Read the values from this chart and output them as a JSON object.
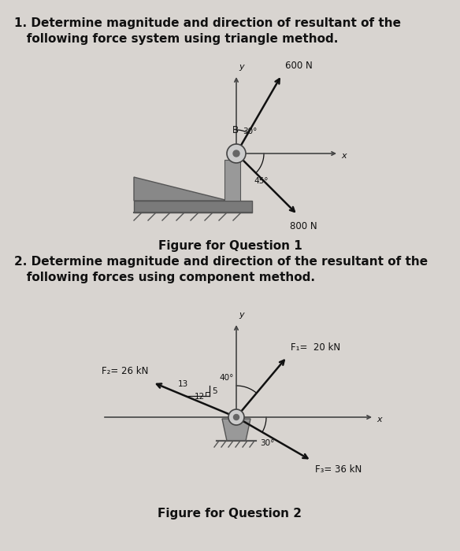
{
  "bg_color": "#d8d4d0",
  "title1_line1": "1. Determine magnitude and direction of resultant of the",
  "title1_line2": "   following force system using triangle method.",
  "title2_line1": "2. Determine magnitude and direction of the resultant of the",
  "title2_line2": "   following forces using component method.",
  "fig_caption1": "Figure for Question 1",
  "fig_caption2": "Figure for Question 2",
  "q1": {
    "force1_label": "600 N",
    "force2_label": "800 N",
    "angle1_label": "30°",
    "angle2_label": "45°",
    "point_label": "B",
    "x_label": "x",
    "y_label": "y"
  },
  "q2": {
    "F1_label": "F₁=  20 kN",
    "F2_label": "F₂= 26 kN",
    "F3_label": "F₃= 36 kN",
    "angle1_label": "40°",
    "angle3_label": "30°",
    "ratio_13": "13",
    "ratio_5": "5",
    "ratio_12": "12",
    "x_label": "x",
    "y_label": "y"
  },
  "arrow_color": "#111111",
  "axis_color": "#444444",
  "text_color": "#111111",
  "support_color": "#888888",
  "support_dark": "#555555"
}
